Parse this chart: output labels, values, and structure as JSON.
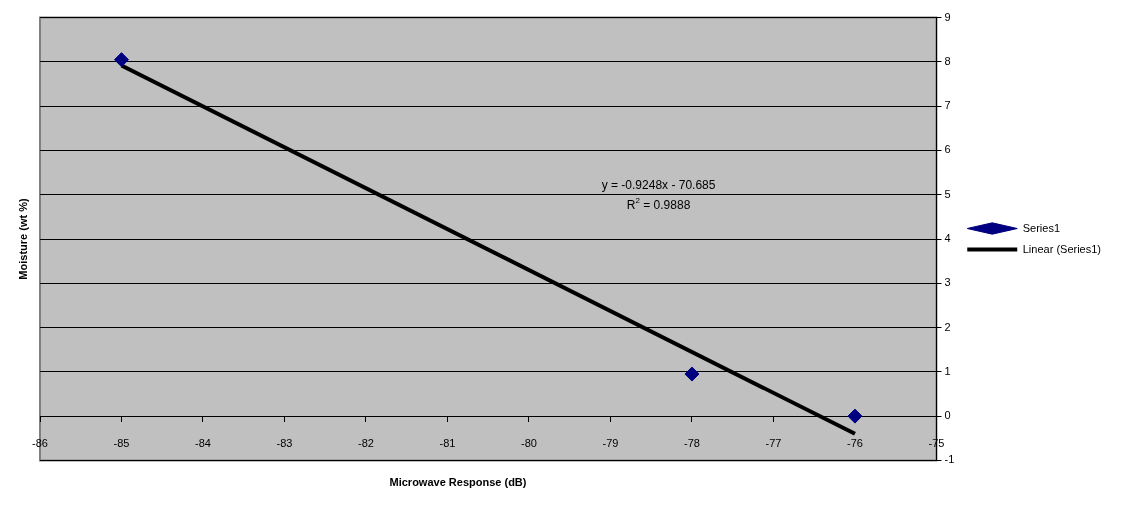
{
  "chart_data": {
    "type": "scatter",
    "xlabel": "Microwave Response (dB)",
    "ylabel": "Moisture (wt %)",
    "xlim": [
      -86,
      -75
    ],
    "xticks": [
      -86,
      -85,
      -84,
      -83,
      -82,
      -81,
      -80,
      -79,
      -78,
      -77,
      -76,
      -75
    ],
    "ylim": [
      -1,
      9
    ],
    "yticks": [
      -1,
      0,
      1,
      2,
      3,
      4,
      5,
      6,
      7,
      8,
      9
    ],
    "grid": "y",
    "legend": "right",
    "annotations": [
      "y = -0.9248x - 70.685",
      "R$^{2}$ = 0.9888"
    ],
    "series": [
      {
        "name": "Series1",
        "marker": "diamond",
        "color": "#000080",
        "x": [
          -85,
          -78,
          -76
        ],
        "values": [
          8.05,
          0.95,
          0
        ]
      },
      {
        "name": "Linear (Series1)",
        "type": "line",
        "marker": "none",
        "color": "#000000",
        "x": [
          -85,
          -76
        ],
        "values": [
          7.92,
          -0.4
        ]
      }
    ]
  }
}
